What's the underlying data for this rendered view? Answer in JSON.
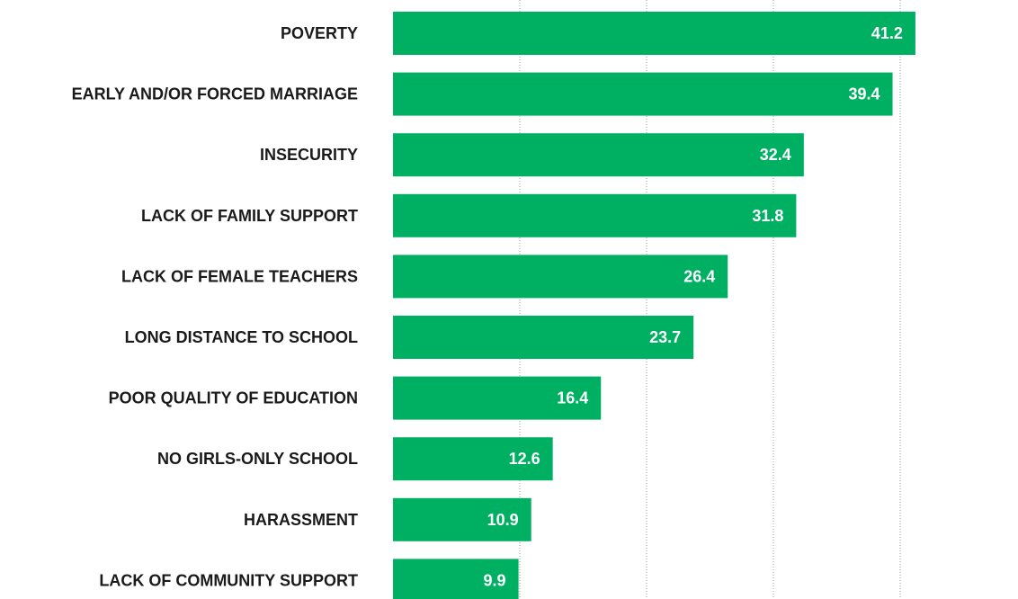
{
  "chart_data": {
    "type": "bar",
    "orientation": "horizontal",
    "categories": [
      "POVERTY",
      "EARLY AND/OR FORCED MARRIAGE",
      "INSECURITY",
      "LACK OF FAMILY SUPPORT",
      "LACK OF FEMALE TEACHERS",
      "LONG DISTANCE TO SCHOOL",
      "POOR QUALITY OF EDUCATION",
      "NO GIRLS-ONLY SCHOOL",
      "HARASSMENT",
      "LACK OF COMMUNITY SUPPORT"
    ],
    "values": [
      41.2,
      39.4,
      32.4,
      31.8,
      26.4,
      23.7,
      16.4,
      12.6,
      10.9,
      9.9
    ],
    "value_labels": [
      "41.2",
      "39.4",
      "32.4",
      "31.8",
      "26.4",
      "23.7",
      "16.4",
      "12.6",
      "10.9",
      "9.9"
    ],
    "xlim": [
      0,
      50
    ],
    "gridlines_x": [
      10,
      20,
      30,
      40
    ],
    "grid": true,
    "bar_color": "#00b062"
  }
}
